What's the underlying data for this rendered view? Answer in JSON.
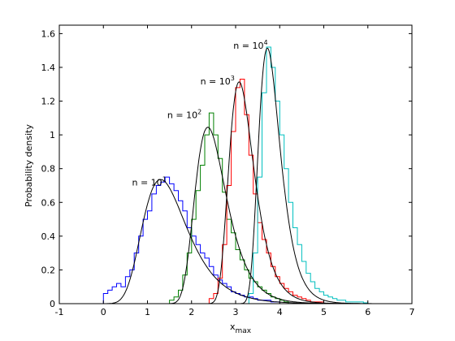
{
  "chart_data": {
    "type": "line",
    "xlabel": "x",
    "xlabel_sub": "max",
    "ylabel": "Probability density",
    "xlim": [
      -1,
      7
    ],
    "ylim": [
      0,
      1.65
    ],
    "x_ticks": [
      -1,
      0,
      1,
      2,
      3,
      4,
      5,
      6,
      7
    ],
    "y_ticks": [
      0,
      0.2,
      0.4,
      0.6,
      0.8,
      1,
      1.2,
      1.4,
      1.6
    ],
    "x_tick_labels": [
      "-1",
      "0",
      "1",
      "2",
      "3",
      "4",
      "5",
      "6",
      "7"
    ],
    "y_tick_labels": [
      "0",
      "0.2",
      "0.4",
      "0.6",
      "0.8",
      "1",
      "1.2",
      "1.4",
      "1.6"
    ],
    "grid": false,
    "legend": "none",
    "annotations": [
      {
        "text": "n = 10",
        "sup": "1",
        "x": 0.65,
        "y": 0.7
      },
      {
        "text": "n = 10",
        "sup": "2",
        "x": 1.45,
        "y": 1.1
      },
      {
        "text": "n = 10",
        "sup": "3",
        "x": 2.2,
        "y": 1.3
      },
      {
        "text": "n = 10",
        "sup": "4",
        "x": 2.95,
        "y": 1.51
      }
    ],
    "series": [
      {
        "kind": "histogram",
        "color": "#0000ff",
        "edges": [
          0.0,
          0.1,
          0.2,
          0.3,
          0.4,
          0.5,
          0.6,
          0.7,
          0.8,
          0.9,
          1.0,
          1.1,
          1.2,
          1.3,
          1.4,
          1.5,
          1.6,
          1.7,
          1.8,
          1.9,
          2.0,
          2.1,
          2.2,
          2.3,
          2.4,
          2.5,
          2.6,
          2.7,
          2.8,
          2.9,
          3.0,
          3.1,
          3.2,
          3.3,
          3.4,
          3.5,
          3.6,
          3.7,
          3.8,
          3.9,
          4.0
        ],
        "heights": [
          0.06,
          0.08,
          0.1,
          0.12,
          0.1,
          0.16,
          0.2,
          0.3,
          0.4,
          0.5,
          0.55,
          0.65,
          0.7,
          0.72,
          0.75,
          0.71,
          0.67,
          0.61,
          0.55,
          0.45,
          0.4,
          0.35,
          0.3,
          0.27,
          0.22,
          0.17,
          0.14,
          0.12,
          0.1,
          0.07,
          0.06,
          0.05,
          0.04,
          0.04,
          0.03,
          0.02,
          0.02,
          0.02,
          0.01,
          0.01
        ]
      },
      {
        "kind": "histogram",
        "color": "#008000",
        "edges": [
          1.5,
          1.6,
          1.7,
          1.8,
          1.9,
          2.0,
          2.1,
          2.2,
          2.3,
          2.4,
          2.5,
          2.6,
          2.7,
          2.8,
          2.9,
          3.0,
          3.1,
          3.2,
          3.3,
          3.4,
          3.5,
          3.6,
          3.7,
          3.8,
          3.9,
          4.0,
          4.1,
          4.2
        ],
        "heights": [
          0.02,
          0.04,
          0.08,
          0.17,
          0.3,
          0.5,
          0.67,
          0.82,
          1.0,
          1.13,
          1.0,
          0.86,
          0.66,
          0.5,
          0.42,
          0.32,
          0.26,
          0.2,
          0.15,
          0.13,
          0.1,
          0.08,
          0.06,
          0.04,
          0.03,
          0.02,
          0.01
        ]
      },
      {
        "kind": "histogram",
        "color": "#ff0000",
        "edges": [
          2.4,
          2.5,
          2.6,
          2.7,
          2.8,
          2.9,
          3.0,
          3.1,
          3.2,
          3.3,
          3.4,
          3.5,
          3.6,
          3.7,
          3.8,
          3.9,
          4.0,
          4.1,
          4.2,
          4.3,
          4.4,
          4.5,
          4.6,
          4.7,
          4.8,
          4.9,
          5.0
        ],
        "heights": [
          0.03,
          0.06,
          0.15,
          0.35,
          0.7,
          1.02,
          1.28,
          1.33,
          1.12,
          0.88,
          0.65,
          0.48,
          0.38,
          0.3,
          0.22,
          0.16,
          0.12,
          0.09,
          0.07,
          0.05,
          0.04,
          0.03,
          0.02,
          0.01,
          0.01,
          0.01
        ]
      },
      {
        "kind": "histogram",
        "color": "#00bfbf",
        "edges": [
          3.3,
          3.4,
          3.5,
          3.6,
          3.7,
          3.8,
          3.9,
          4.0,
          4.1,
          4.2,
          4.3,
          4.4,
          4.5,
          4.6,
          4.7,
          4.8,
          4.9,
          5.0,
          5.1,
          5.2,
          5.3,
          5.4,
          5.5,
          5.6,
          5.7,
          5.8,
          5.9,
          6.0
        ],
        "heights": [
          0.06,
          0.3,
          0.75,
          1.25,
          1.52,
          1.4,
          1.2,
          1.0,
          0.8,
          0.6,
          0.45,
          0.35,
          0.25,
          0.18,
          0.13,
          0.09,
          0.07,
          0.05,
          0.04,
          0.03,
          0.02,
          0.02,
          0.01,
          0.01,
          0.01,
          0.01,
          0.005
        ]
      },
      {
        "kind": "curve",
        "color": "#000000",
        "mu": 1.3,
        "beta": 0.5
      },
      {
        "kind": "curve",
        "color": "#000000",
        "mu": 2.37,
        "beta": 0.352
      },
      {
        "kind": "curve",
        "color": "#000000",
        "mu": 3.08,
        "beta": 0.28
      },
      {
        "kind": "curve",
        "color": "#000000",
        "mu": 3.72,
        "beta": 0.243
      }
    ]
  }
}
